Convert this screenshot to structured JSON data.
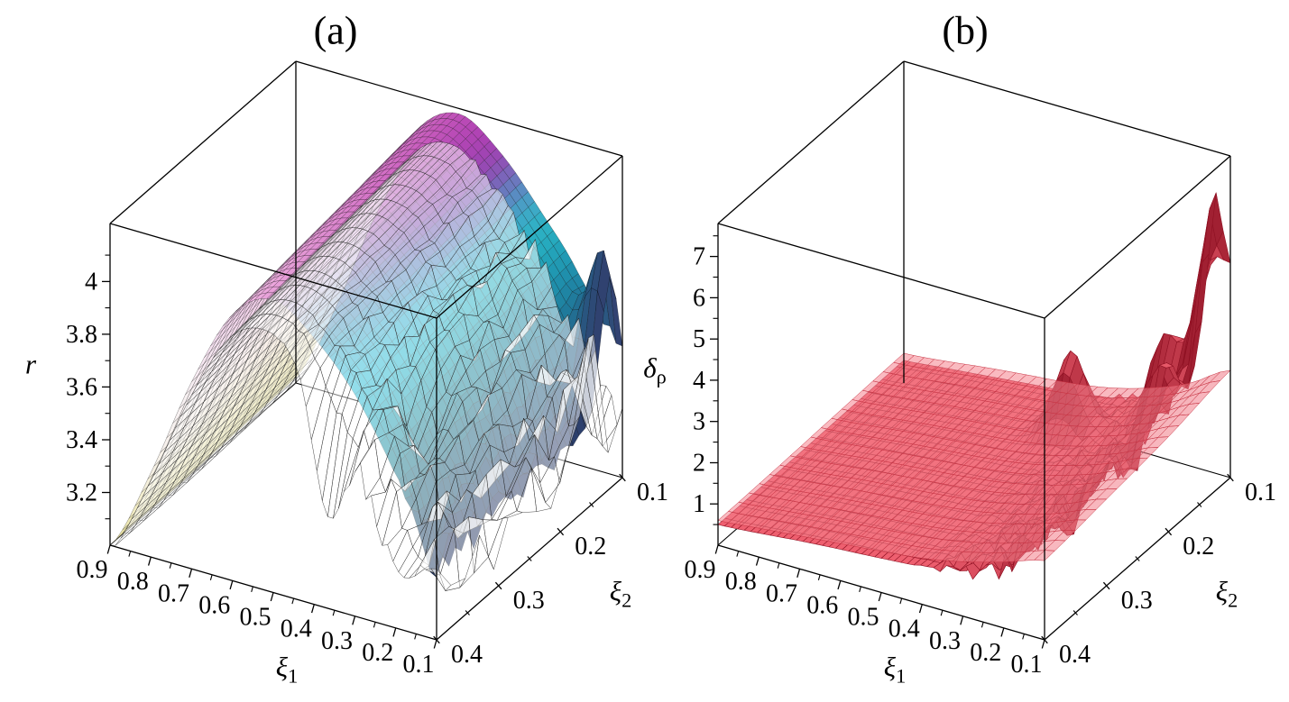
{
  "page": {
    "background": "#ffffff"
  },
  "chart_data": [
    {
      "type": "surface3d",
      "panel": "a",
      "title": "(a)",
      "xlabel": "ξ1",
      "xlabel_base": "ξ",
      "xlabel_sub": "1",
      "ylabel": "ξ2",
      "ylabel_base": "ξ",
      "ylabel_sub": "2",
      "zlabel": "r",
      "zlabel_base": "r",
      "zlabel_sub": "",
      "x_ticks": [
        0.9,
        0.8,
        0.7,
        0.6,
        0.5,
        0.4,
        0.3,
        0.2,
        0.1
      ],
      "y_ticks": [
        0.4,
        0.3,
        0.2,
        0.1
      ],
      "z_ticks": [
        3.2,
        3.4,
        3.6,
        3.8,
        4
      ],
      "z_minor_step": 0.1,
      "x_range": [
        0.9,
        0.1
      ],
      "y_range": [
        0.4,
        0.1
      ],
      "z_range": [
        3.0,
        4.22
      ],
      "grid_xi1": [
        0.9,
        0.8,
        0.7,
        0.6,
        0.5,
        0.4,
        0.3,
        0.2,
        0.1
      ],
      "grid_xi2": [
        0.1,
        0.2,
        0.3,
        0.4
      ],
      "surfaces": [
        {
          "name": "r-mean-colormap-surface",
          "style": "colormap",
          "stroke": "rgba(0,0,0,0.5)",
          "stroke_width": 0.45,
          "mesh_nx": 52,
          "mesh_ny": 30,
          "z_grid": [
            [
              3.02,
              3.38,
              3.8,
              4.1,
              4.2,
              4.1,
              3.92,
              3.7,
              3.3
            ],
            [
              3.01,
              3.36,
              3.77,
              4.07,
              4.17,
              4.07,
              3.9,
              3.66,
              3.3
            ],
            [
              3.0,
              3.34,
              3.74,
              4.04,
              4.14,
              4.04,
              3.87,
              3.62,
              3.28
            ],
            [
              3.0,
              3.32,
              3.71,
              4.01,
              4.11,
              4.01,
              3.84,
              3.58,
              3.26
            ]
          ],
          "color_grid": [
            [
              "#d9d27e",
              "#e6d3a6",
              "#e5aed2",
              "#d077c6",
              "#bf50b8",
              "#9a48b4",
              "#37aec6",
              "#1f86a6",
              "#33406f"
            ],
            [
              "#dfd989",
              "#eee0c0",
              "#efc6de",
              "#db8fd0",
              "#c862c0",
              "#8355b4",
              "#2fb2ca",
              "#1d7f9a",
              "#2b3a68"
            ],
            [
              "#e5de93",
              "#f2ead4",
              "#f4dae9",
              "#e5aadb",
              "#d284cb",
              "#6a82bc",
              "#28b7d0",
              "#1b7a90",
              "#253462"
            ],
            [
              "#eae39c",
              "#f5f0e4",
              "#f7edf2",
              "#eec9e7",
              "#dd9bd6",
              "#53a0c2",
              "#22bad4",
              "#19768a",
              "#1f2e5a"
            ]
          ],
          "noise": {
            "fx_min": 0.86,
            "amplitude": 0.05
          },
          "spikes": [
            {
              "xi1": 0.12,
              "xi2": 0.12,
              "value": 3.9
            }
          ]
        },
        {
          "name": "r-raw-wireframe-surface",
          "style": "solid",
          "fill": "#ffffff",
          "fill_opacity": 0.5,
          "stroke": "#1b1b1b",
          "stroke_width": 0.4,
          "mesh_nx": 60,
          "mesh_ny": 13,
          "z_grid": [
            [
              3.0,
              3.34,
              3.74,
              4.02,
              4.07,
              3.93,
              3.72,
              3.47,
              3.24
            ],
            [
              2.99,
              3.32,
              3.71,
              3.99,
              4.04,
              3.9,
              3.69,
              3.43,
              3.22
            ],
            [
              2.98,
              3.3,
              3.68,
              3.96,
              4.01,
              3.86,
              3.65,
              3.39,
              3.2
            ],
            [
              2.98,
              3.29,
              3.66,
              3.93,
              3.98,
              3.83,
              3.61,
              3.35,
              3.18
            ]
          ],
          "noise": {
            "fx_min": 0.5,
            "amplitude": 0.13
          },
          "spikes": [
            {
              "xi1": 0.1,
              "xi2": 0.15,
              "value": 3.75
            },
            {
              "xi1": 0.1,
              "xi2": 0.12,
              "value": 3.14
            },
            {
              "xi1": 0.36,
              "xi2": 0.4,
              "value": 3.34
            },
            {
              "xi1": 0.18,
              "xi2": 0.4,
              "value": 3.2
            },
            {
              "xi1": 0.27,
              "xi2": 0.3,
              "value": 3.38
            }
          ]
        }
      ]
    },
    {
      "type": "surface3d",
      "panel": "b",
      "title": "(b)",
      "xlabel": "ξ1",
      "xlabel_base": "ξ",
      "xlabel_sub": "1",
      "ylabel": "ξ2",
      "ylabel_base": "ξ",
      "ylabel_sub": "2",
      "zlabel": "δρ",
      "zlabel_base": "δ",
      "zlabel_sub": "ρ",
      "x_ticks": [
        0.9,
        0.8,
        0.7,
        0.6,
        0.5,
        0.4,
        0.3,
        0.2,
        0.1
      ],
      "y_ticks": [
        0.4,
        0.3,
        0.2,
        0.1
      ],
      "z_ticks": [
        1,
        2,
        3,
        4,
        5,
        6,
        7
      ],
      "z_minor_step": 0.5,
      "x_range": [
        0.9,
        0.1
      ],
      "y_range": [
        0.4,
        0.1
      ],
      "z_range": [
        0,
        7.8
      ],
      "grid_xi1": [
        0.9,
        0.8,
        0.7,
        0.6,
        0.5,
        0.4,
        0.3,
        0.2,
        0.1
      ],
      "grid_xi2": [
        0.1,
        0.2,
        0.3,
        0.4
      ],
      "surfaces": [
        {
          "name": "delta-rho-raw-surface",
          "style": "solid",
          "fill": "#ef6070",
          "fill_opacity": 1,
          "stroke": "#8e1022",
          "stroke_width": 0.55,
          "shade": true,
          "mesh_nx": 50,
          "mesh_ny": 26,
          "z_grid": [
            [
              0.55,
              0.65,
              0.75,
              0.85,
              0.95,
              1.1,
              1.45,
              2.1,
              3.6
            ],
            [
              0.52,
              0.62,
              0.72,
              0.82,
              0.9,
              1.02,
              1.3,
              1.8,
              2.9
            ],
            [
              0.5,
              0.6,
              0.7,
              0.78,
              0.86,
              0.96,
              1.18,
              1.6,
              2.4
            ],
            [
              0.5,
              0.58,
              0.68,
              0.76,
              0.83,
              0.92,
              1.1,
              1.48,
              2.2
            ]
          ],
          "noise": {
            "fx_min": 0.6,
            "amplitude": 0.5
          },
          "spikes": [
            {
              "xi1": 0.1,
              "xi2": 0.12,
              "value": 7.7
            },
            {
              "xi1": 0.13,
              "xi2": 0.1,
              "value": 5.3
            },
            {
              "xi1": 0.11,
              "xi2": 0.2,
              "value": 4.1
            },
            {
              "xi1": 0.1,
              "xi2": 0.3,
              "value": 3.0
            },
            {
              "xi1": 0.4,
              "xi2": 0.16,
              "value": 3.0
            },
            {
              "xi1": 0.22,
              "xi2": 0.12,
              "value": 3.5
            },
            {
              "xi1": 0.1,
              "xi2": 0.38,
              "value": 2.7
            }
          ]
        },
        {
          "name": "delta-rho-smooth-surface",
          "style": "solid",
          "fill": "#f6838f",
          "fill_opacity": 0.55,
          "stroke": "#c63242",
          "stroke_width": 0.5,
          "shade": true,
          "mesh_nx": 32,
          "mesh_ny": 18,
          "z_grid": [
            [
              0.72,
              0.82,
              0.95,
              1.06,
              1.16,
              1.32,
              1.6,
              2.0,
              2.6
            ],
            [
              0.68,
              0.78,
              0.9,
              1.0,
              1.1,
              1.25,
              1.5,
              1.85,
              2.3
            ],
            [
              0.63,
              0.73,
              0.85,
              0.95,
              1.05,
              1.18,
              1.4,
              1.7,
              2.1
            ],
            [
              0.6,
              0.7,
              0.8,
              0.9,
              1.0,
              1.12,
              1.32,
              1.6,
              1.92
            ]
          ]
        }
      ]
    }
  ]
}
